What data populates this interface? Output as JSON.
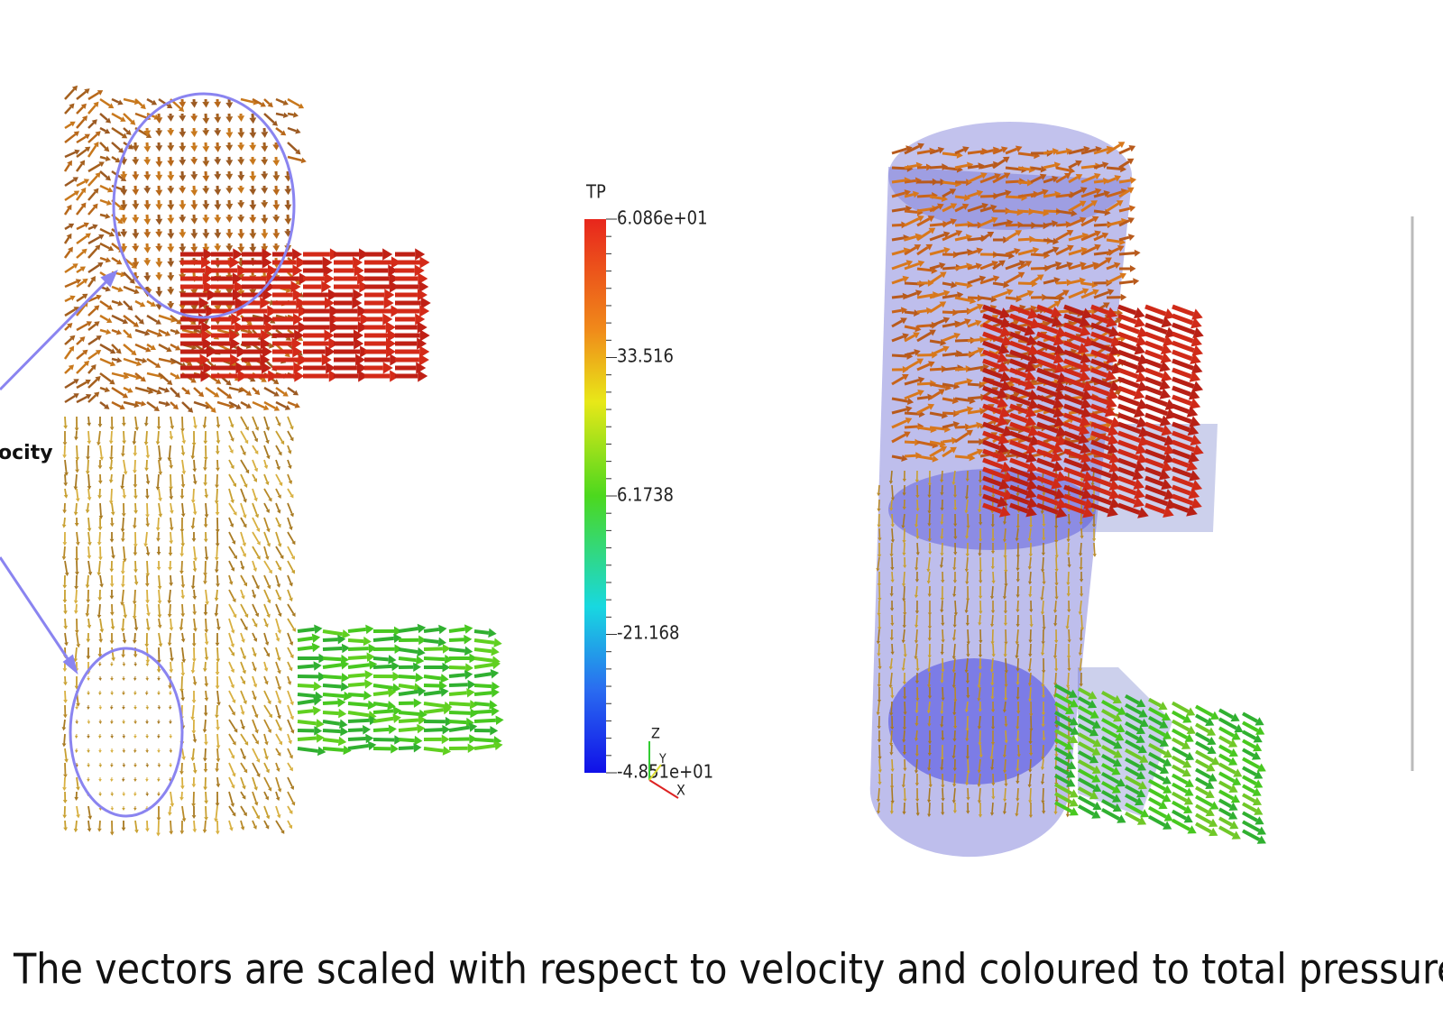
{
  "left_figure": {
    "annotation": "ocity"
  },
  "colorbar": {
    "title": "TP",
    "labels": [
      "6.086e+01",
      "33.516",
      "6.1738",
      "-21.168",
      "-4.851e+01"
    ]
  },
  "axes_triad": {
    "z": "Z",
    "y": "Y",
    "x": "X"
  },
  "caption": "The vectors are scaled with respect to velocity and coloured to total pressure."
}
